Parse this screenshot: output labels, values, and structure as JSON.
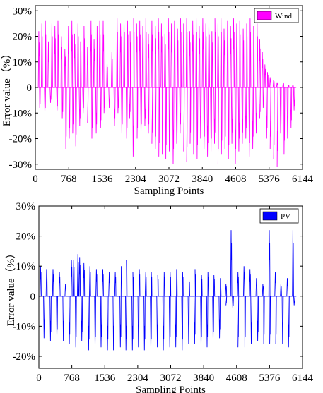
{
  "chart_data": [
    {
      "type": "line",
      "xlabel": "Sampling Points",
      "ylabel": "Error value（%）",
      "xlim": [
        0,
        6144
      ],
      "ylim": [
        -32,
        32
      ],
      "xticks": [
        0,
        768,
        1536,
        2304,
        3072,
        3840,
        4608,
        5376,
        6144
      ],
      "xtick_labels": [
        "0",
        "768",
        "1536",
        "2304",
        "3072",
        "3840",
        "4608",
        "5376",
        "6144"
      ],
      "yticks": [
        -30,
        -20,
        -10,
        0,
        10,
        20,
        30
      ],
      "ytick_labels": [
        "-30%",
        "-20%",
        "-10%",
        "0",
        "10%",
        "20%",
        "30%"
      ],
      "legend_position": "top-right",
      "grid": false,
      "series": [
        {
          "name": "Wind",
          "color": "#ff00ff",
          "x_range": [
            0,
            6000
          ],
          "pos_peaks": [
            [
              80,
              22
            ],
            [
              150,
              25
            ],
            [
              230,
              26
            ],
            [
              300,
              18
            ],
            [
              380,
              25
            ],
            [
              450,
              24
            ],
            [
              520,
              26
            ],
            [
              600,
              20
            ],
            [
              680,
              15
            ],
            [
              760,
              24
            ],
            [
              840,
              26
            ],
            [
              900,
              21
            ],
            [
              980,
              25
            ],
            [
              1040,
              18
            ],
            [
              1120,
              24
            ],
            [
              1200,
              16
            ],
            [
              1280,
              26
            ],
            [
              1350,
              19
            ],
            [
              1420,
              24
            ],
            [
              1480,
              26
            ],
            [
              1560,
              26
            ],
            [
              1650,
              10
            ],
            [
              1760,
              14
            ],
            [
              1880,
              27
            ],
            [
              1960,
              25
            ],
            [
              2040,
              27
            ],
            [
              2120,
              26
            ],
            [
              2180,
              22
            ],
            [
              2260,
              27
            ],
            [
              2330,
              25
            ],
            [
              2400,
              26
            ],
            [
              2470,
              24
            ],
            [
              2540,
              27
            ],
            [
              2600,
              21
            ],
            [
              2680,
              26
            ],
            [
              2760,
              24
            ],
            [
              2830,
              27
            ],
            [
              2900,
              25
            ],
            [
              2980,
              21
            ],
            [
              3060,
              27
            ],
            [
              3130,
              25
            ],
            [
              3200,
              26
            ],
            [
              3270,
              23
            ],
            [
              3340,
              27
            ],
            [
              3410,
              25
            ],
            [
              3480,
              27
            ],
            [
              3550,
              22
            ],
            [
              3620,
              26
            ],
            [
              3700,
              27
            ],
            [
              3770,
              24
            ],
            [
              3850,
              27
            ],
            [
              3920,
              25
            ],
            [
              3990,
              26
            ],
            [
              4060,
              22
            ],
            [
              4130,
              27
            ],
            [
              4200,
              25
            ],
            [
              4270,
              27
            ],
            [
              4340,
              23
            ],
            [
              4420,
              26
            ],
            [
              4490,
              24
            ],
            [
              4560,
              27
            ],
            [
              4630,
              25
            ],
            [
              4700,
              26
            ],
            [
              4780,
              23
            ],
            [
              4860,
              25
            ],
            [
              4940,
              27
            ],
            [
              5020,
              24
            ],
            [
              5100,
              25
            ],
            [
              5160,
              19
            ],
            [
              5220,
              14
            ],
            [
              5280,
              9
            ],
            [
              5340,
              6
            ],
            [
              5400,
              4
            ],
            [
              5480,
              3
            ],
            [
              5560,
              2
            ],
            [
              5700,
              2
            ],
            [
              5820,
              1
            ],
            [
              5920,
              1
            ]
          ],
          "neg_peaks": [
            [
              100,
              -8
            ],
            [
              220,
              -10
            ],
            [
              350,
              -6
            ],
            [
              500,
              -9
            ],
            [
              620,
              -12
            ],
            [
              700,
              -24
            ],
            [
              780,
              -20
            ],
            [
              860,
              -18
            ],
            [
              930,
              -23
            ],
            [
              1020,
              -15
            ],
            [
              1100,
              -10
            ],
            [
              1200,
              -14
            ],
            [
              1300,
              -20
            ],
            [
              1400,
              -18
            ],
            [
              1500,
              -16
            ],
            [
              1580,
              -10
            ],
            [
              1700,
              -8
            ],
            [
              1820,
              -15
            ],
            [
              1900,
              -10
            ],
            [
              1990,
              -18
            ],
            [
              2100,
              -20
            ],
            [
              2170,
              -12
            ],
            [
              2250,
              -27
            ],
            [
              2340,
              -20
            ],
            [
              2430,
              -18
            ],
            [
              2520,
              -15
            ],
            [
              2600,
              -18
            ],
            [
              2680,
              -22
            ],
            [
              2760,
              -24
            ],
            [
              2840,
              -27
            ],
            [
              2920,
              -26
            ],
            [
              3000,
              -28
            ],
            [
              3080,
              -25
            ],
            [
              3170,
              -30
            ],
            [
              3250,
              -22
            ],
            [
              3330,
              -18
            ],
            [
              3410,
              -25
            ],
            [
              3480,
              -29
            ],
            [
              3560,
              -22
            ],
            [
              3640,
              -26
            ],
            [
              3720,
              -28
            ],
            [
              3800,
              -20
            ],
            [
              3880,
              -24
            ],
            [
              3960,
              -27
            ],
            [
              4040,
              -25
            ],
            [
              4120,
              -22
            ],
            [
              4200,
              -30
            ],
            [
              4280,
              -26
            ],
            [
              4360,
              -24
            ],
            [
              4440,
              -28
            ],
            [
              4520,
              -22
            ],
            [
              4600,
              -30
            ],
            [
              4680,
              -25
            ],
            [
              4760,
              -22
            ],
            [
              4840,
              -20
            ],
            [
              4920,
              -27
            ],
            [
              5000,
              -24
            ],
            [
              5080,
              -18
            ],
            [
              5160,
              -12
            ],
            [
              5240,
              -8
            ],
            [
              5320,
              -20
            ],
            [
              5400,
              -24
            ],
            [
              5480,
              -28
            ],
            [
              5560,
              -31
            ],
            [
              5640,
              -18
            ],
            [
              5720,
              -26
            ],
            [
              5800,
              -20
            ],
            [
              5880,
              -16
            ],
            [
              5950,
              -9
            ]
          ]
        }
      ]
    },
    {
      "type": "line",
      "xlabel": "Sampling Points",
      "ylabel": "Error value（%）",
      "xlim": [
        0,
        6144
      ],
      "ylim": [
        -24,
        30
      ],
      "xticks": [
        0,
        768,
        1536,
        2304,
        3072,
        3840,
        4608,
        5376,
        6144
      ],
      "xtick_labels": [
        "0",
        "768",
        "1536",
        "2304",
        "3072",
        "3840",
        "4608",
        "5376",
        "6144"
      ],
      "yticks": [
        -20,
        -10,
        0,
        10,
        20,
        30
      ],
      "ytick_labels": [
        "-20%",
        "-10%",
        "0",
        "10%",
        "20%",
        "30%"
      ],
      "legend_position": "top-right",
      "grid": false,
      "series": [
        {
          "name": "PV",
          "color": "#0000ff",
          "x_range": [
            0,
            6000
          ],
          "day_period": 144,
          "pos_peaks": [
            [
              40,
              10
            ],
            [
              180,
              9
            ],
            [
              330,
              9
            ],
            [
              480,
              8
            ],
            [
              620,
              4
            ],
            [
              760,
              12
            ],
            [
              810,
              12
            ],
            [
              910,
              14
            ],
            [
              950,
              13
            ],
            [
              1050,
              11
            ],
            [
              1190,
              10
            ],
            [
              1340,
              9
            ],
            [
              1490,
              9
            ],
            [
              1640,
              8
            ],
            [
              1780,
              8
            ],
            [
              1920,
              10
            ],
            [
              2040,
              12
            ],
            [
              2190,
              8
            ],
            [
              2340,
              9
            ],
            [
              2490,
              8
            ],
            [
              2620,
              8
            ],
            [
              2770,
              7
            ],
            [
              2920,
              8
            ],
            [
              3060,
              8
            ],
            [
              3210,
              9
            ],
            [
              3350,
              8
            ],
            [
              3500,
              6
            ],
            [
              3640,
              9
            ],
            [
              3790,
              7
            ],
            [
              3940,
              8
            ],
            [
              4080,
              7
            ],
            [
              4230,
              6
            ],
            [
              4360,
              4
            ],
            [
              4480,
              22
            ],
            [
              4640,
              8
            ],
            [
              4780,
              10
            ],
            [
              4920,
              9
            ],
            [
              5070,
              6
            ],
            [
              5220,
              4
            ],
            [
              5370,
              22
            ],
            [
              5510,
              8
            ],
            [
              5640,
              4
            ],
            [
              5790,
              6
            ],
            [
              5920,
              22
            ]
          ],
          "neg_peaks": [
            [
              120,
              -14
            ],
            [
              270,
              -15
            ],
            [
              420,
              -14
            ],
            [
              570,
              -15
            ],
            [
              710,
              -16
            ],
            [
              860,
              -17
            ],
            [
              1000,
              -15
            ],
            [
              1160,
              -18
            ],
            [
              1310,
              -17
            ],
            [
              1450,
              -17
            ],
            [
              1600,
              -18
            ],
            [
              1740,
              -18
            ],
            [
              1900,
              -17
            ],
            [
              2030,
              -18
            ],
            [
              2180,
              -18
            ],
            [
              2320,
              -17
            ],
            [
              2460,
              -18
            ],
            [
              2610,
              -18
            ],
            [
              2760,
              -17
            ],
            [
              2900,
              -18
            ],
            [
              3050,
              -17
            ],
            [
              3190,
              -17
            ],
            [
              3340,
              -18
            ],
            [
              3490,
              -16
            ],
            [
              3630,
              -16
            ],
            [
              3780,
              -17
            ],
            [
              3920,
              -17
            ],
            [
              4060,
              -15
            ],
            [
              4210,
              -14
            ],
            [
              4360,
              -3
            ],
            [
              4520,
              -4
            ],
            [
              4640,
              -17
            ],
            [
              4800,
              -17
            ],
            [
              4950,
              -16
            ],
            [
              5100,
              -15
            ],
            [
              5240,
              -16
            ],
            [
              5380,
              -16
            ],
            [
              5520,
              -16
            ],
            [
              5680,
              -16
            ],
            [
              5820,
              -17
            ],
            [
              5950,
              -3
            ]
          ]
        }
      ]
    }
  ]
}
